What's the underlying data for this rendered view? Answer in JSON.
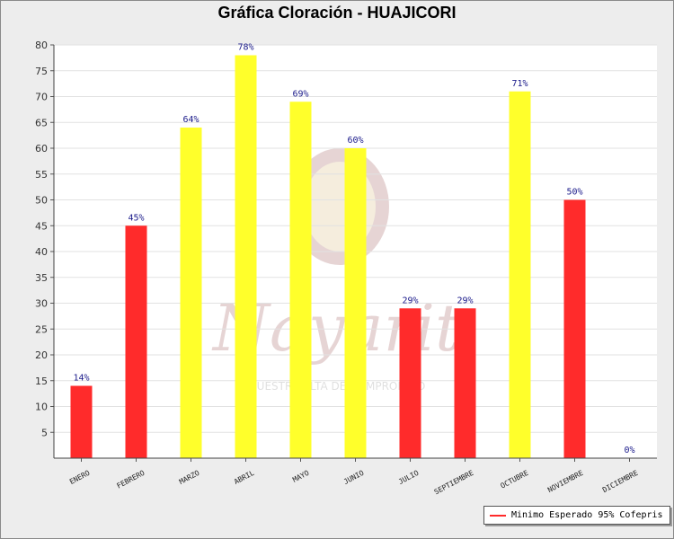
{
  "chart_data": {
    "type": "bar",
    "title": "Gráfica Cloración - HUAJICORI",
    "categories": [
      "ENERO",
      "FEBRERO",
      "MARZO",
      "ABRIL",
      "MAYO",
      "JUNIO",
      "JULIO",
      "SEPTIEMBRE",
      "OCTUBRE",
      "NOVIEMBRE",
      "DICIEMBRE"
    ],
    "values": [
      14,
      45,
      64,
      78,
      69,
      60,
      29,
      29,
      71,
      50,
      0
    ],
    "data_labels": [
      "14%",
      "45%",
      "64%",
      "78%",
      "69%",
      "60%",
      "29%",
      "29%",
      "71%",
      "50%",
      "0%"
    ],
    "bar_colors": [
      "#ff2b2b",
      "#ff2b2b",
      "#ffff2b",
      "#ffff2b",
      "#ffff2b",
      "#ffff2b",
      "#ff2b2b",
      "#ff2b2b",
      "#ffff2b",
      "#ff2b2b",
      "#ff2b2b"
    ],
    "ylim": [
      0,
      80
    ],
    "yticks": [
      5,
      10,
      15,
      20,
      25,
      30,
      35,
      40,
      45,
      50,
      55,
      60,
      65,
      70,
      75,
      80
    ],
    "grid": true,
    "legend": {
      "position": "bottom-right",
      "entries": [
        {
          "label": "Minimo Esperado 95% Cofepris",
          "color": "#ff2b2b"
        }
      ]
    },
    "watermark": {
      "text": "Nayarit",
      "subtitle": "NUESTRA ALTA DE COMPROMISO"
    }
  }
}
